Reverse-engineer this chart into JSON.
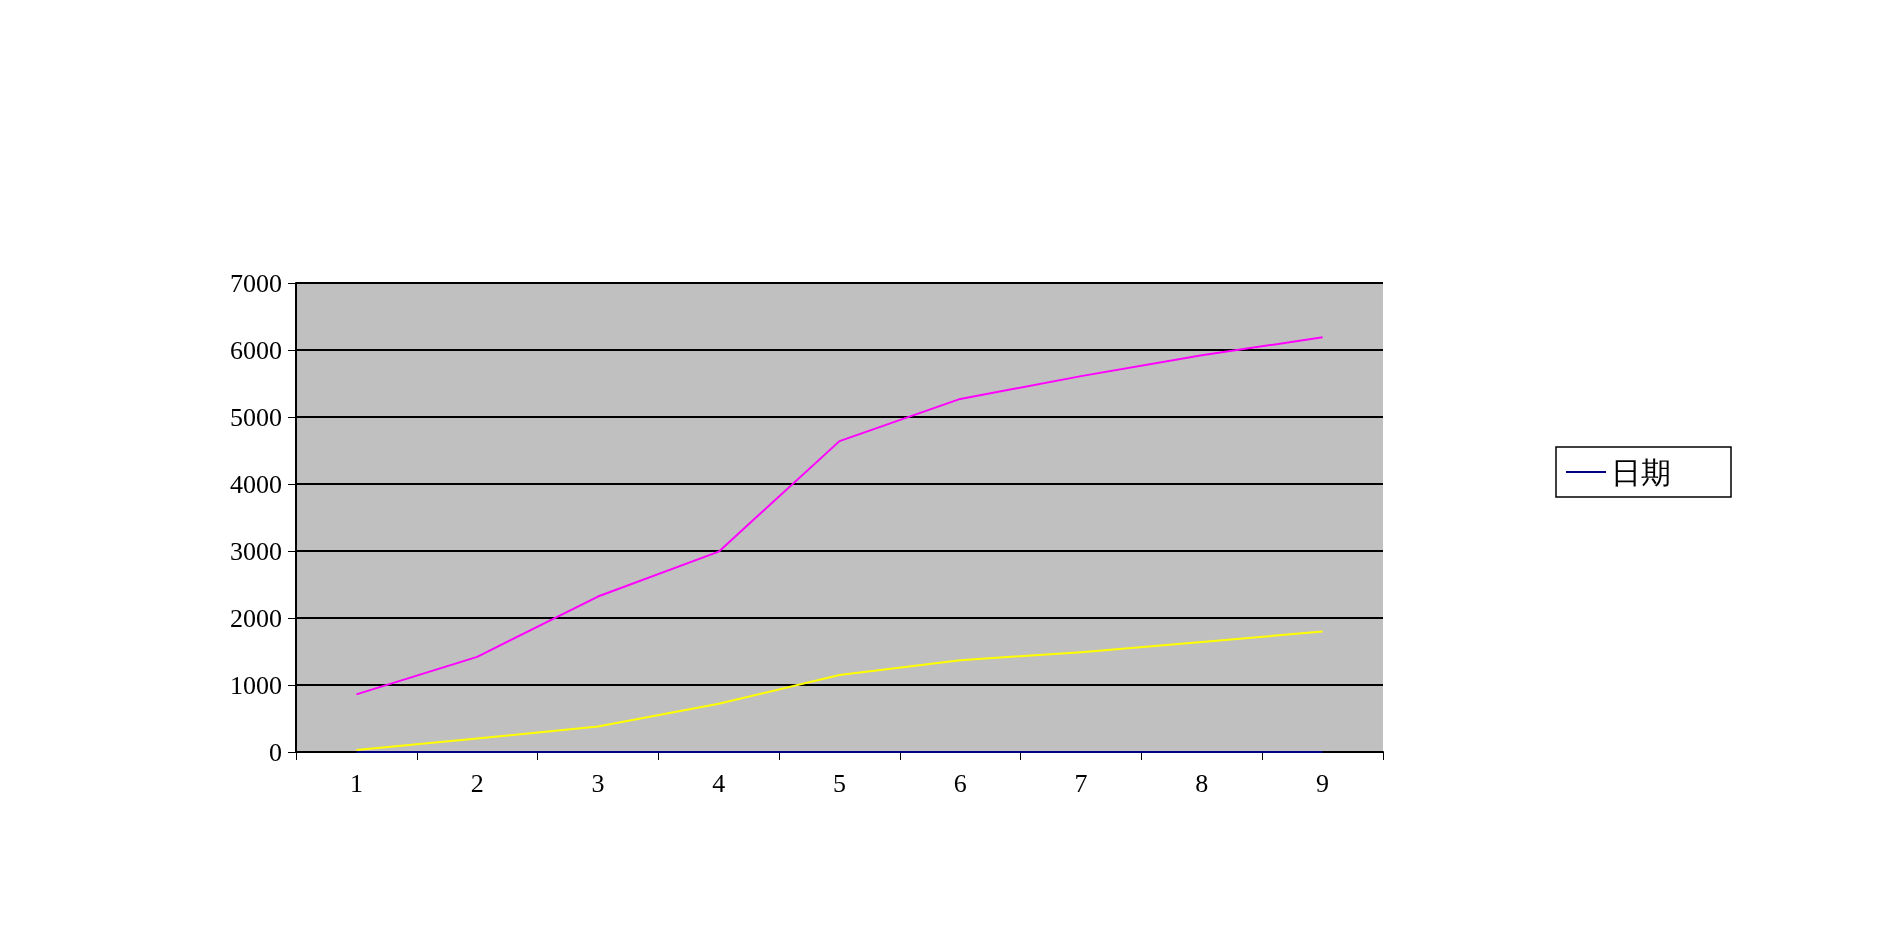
{
  "chart_data": {
    "type": "line",
    "categories": [
      "1",
      "2",
      "3",
      "4",
      "5",
      "6",
      "7",
      "8",
      "9"
    ],
    "series": [
      {
        "name": "日期",
        "color": "#000080",
        "values": [
          0,
          0,
          0,
          0,
          0,
          0,
          0,
          0,
          0
        ]
      },
      {
        "color": "#ff00ff",
        "values": [
          860,
          1420,
          2320,
          2990,
          4640,
          5270,
          5610,
          5920,
          6190
        ]
      },
      {
        "color": "#ffff00",
        "values": [
          30,
          200,
          380,
          720,
          1150,
          1370,
          1490,
          1640,
          1800
        ]
      }
    ],
    "ylim": [
      0,
      7000
    ],
    "yticks": [
      0,
      1000,
      2000,
      3000,
      4000,
      5000,
      6000,
      7000
    ],
    "grid": "y",
    "legend": "right",
    "marker": "none",
    "line_style": "solid"
  }
}
